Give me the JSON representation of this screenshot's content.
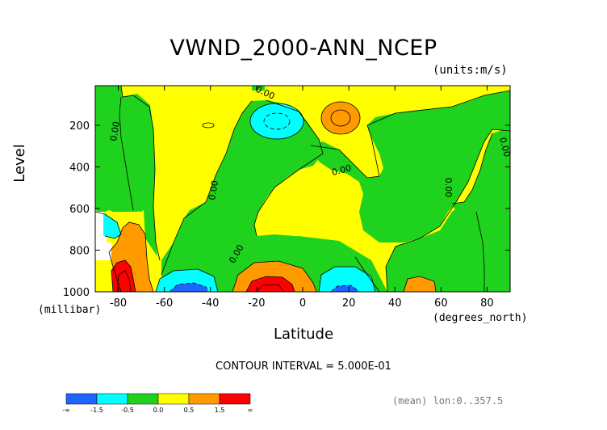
{
  "chart_data": {
    "type": "contour",
    "title": "VWND_2000-ANN_NCEP",
    "units_label": "(units:m/s)",
    "xlabel": "Latitude",
    "x_units": "(degrees_north)",
    "ylabel": "Level",
    "y_units": "(millibar)",
    "xlim": [
      -90,
      90
    ],
    "ylim": [
      1000,
      10
    ],
    "y_inverted": true,
    "x_ticks": [
      "-80",
      "-60",
      "-40",
      "-20",
      "0",
      "20",
      "40",
      "60",
      "80"
    ],
    "x_tick_values": [
      -80,
      -60,
      -40,
      -20,
      0,
      20,
      40,
      60,
      80
    ],
    "y_ticks": [
      "200",
      "400",
      "600",
      "800",
      "1000"
    ],
    "y_tick_values": [
      200,
      400,
      600,
      800,
      1000
    ],
    "contour_interval_text": "CONTOUR INTERVAL = 5.000E-01",
    "contour_labels": [
      "0.00",
      "0.00",
      "0.00",
      "0.00",
      "0.00",
      "0.00",
      "0.00"
    ],
    "footer_text": "(mean) lon:0..357.5",
    "colorbar": {
      "labels": [
        "-∞",
        "-1.5",
        "-0.5",
        "0.0",
        "0.5",
        "1.5",
        "∞"
      ],
      "colors": [
        "#1e64ff",
        "#00ffff",
        "#1ed21e",
        "#ffff00",
        "#ff9b00",
        "#ff0000"
      ]
    },
    "regions": [
      {
        "level": "0 to 0.5",
        "color": "#ffff00",
        "lat": [
          -90,
          90
        ],
        "p": [
          10,
          1000
        ],
        "note": "background"
      },
      {
        "level": "-0.5 to 0",
        "color": "#1ed21e",
        "lat": [
          -78,
          -62
        ],
        "p": [
          80,
          900
        ]
      },
      {
        "level": "-0.5 to 0",
        "color": "#1ed21e",
        "lat": [
          -58,
          35
        ],
        "p": [
          90,
          1000
        ]
      },
      {
        "level": "-0.5 to 0",
        "color": "#1ed21e",
        "lat": [
          55,
          90
        ],
        "p": [
          160,
          1000
        ]
      },
      {
        "level": "-1.5 to -0.5",
        "color": "#00ffff",
        "lat": [
          -25,
          -5
        ],
        "p": [
          110,
          260
        ]
      },
      {
        "level": "0.5 to 1.5",
        "color": "#ff9b00",
        "lat": [
          8,
          25
        ],
        "p": [
          110,
          260
        ]
      },
      {
        "level": "0.5 to 1.5",
        "color": "#ff9b00",
        "lat": [
          -78,
          -65
        ],
        "p": [
          680,
          1000
        ]
      },
      {
        "level": "0.5 to 1.5",
        "color": "#ff9b00",
        "lat": [
          -35,
          -5
        ],
        "p": [
          860,
          1000
        ]
      },
      {
        "level": "0.5 to 1.5",
        "color": "#ff9b00",
        "lat": [
          44,
          56
        ],
        "p": [
          930,
          1000
        ]
      },
      {
        "level": "> 1.5",
        "color": "#ff0000",
        "lat": [
          -88,
          -78
        ],
        "p": [
          880,
          1000
        ]
      },
      {
        "level": "> 1.5",
        "color": "#ff0000",
        "lat": [
          -28,
          -5
        ],
        "p": [
          940,
          1000
        ]
      },
      {
        "level": "-1.5 to -0.5",
        "color": "#00ffff",
        "lat": [
          -62,
          -45
        ],
        "p": [
          920,
          1000
        ]
      },
      {
        "level": "-1.5 to -0.5",
        "color": "#00ffff",
        "lat": [
          8,
          28
        ],
        "p": [
          900,
          1000
        ]
      },
      {
        "level": "< -1.5",
        "color": "#1e64ff",
        "lat": [
          -58,
          -48
        ],
        "p": [
          965,
          1000
        ]
      },
      {
        "level": "< -1.5",
        "color": "#1e64ff",
        "lat": [
          10,
          20
        ],
        "p": [
          970,
          1000
        ]
      }
    ]
  }
}
